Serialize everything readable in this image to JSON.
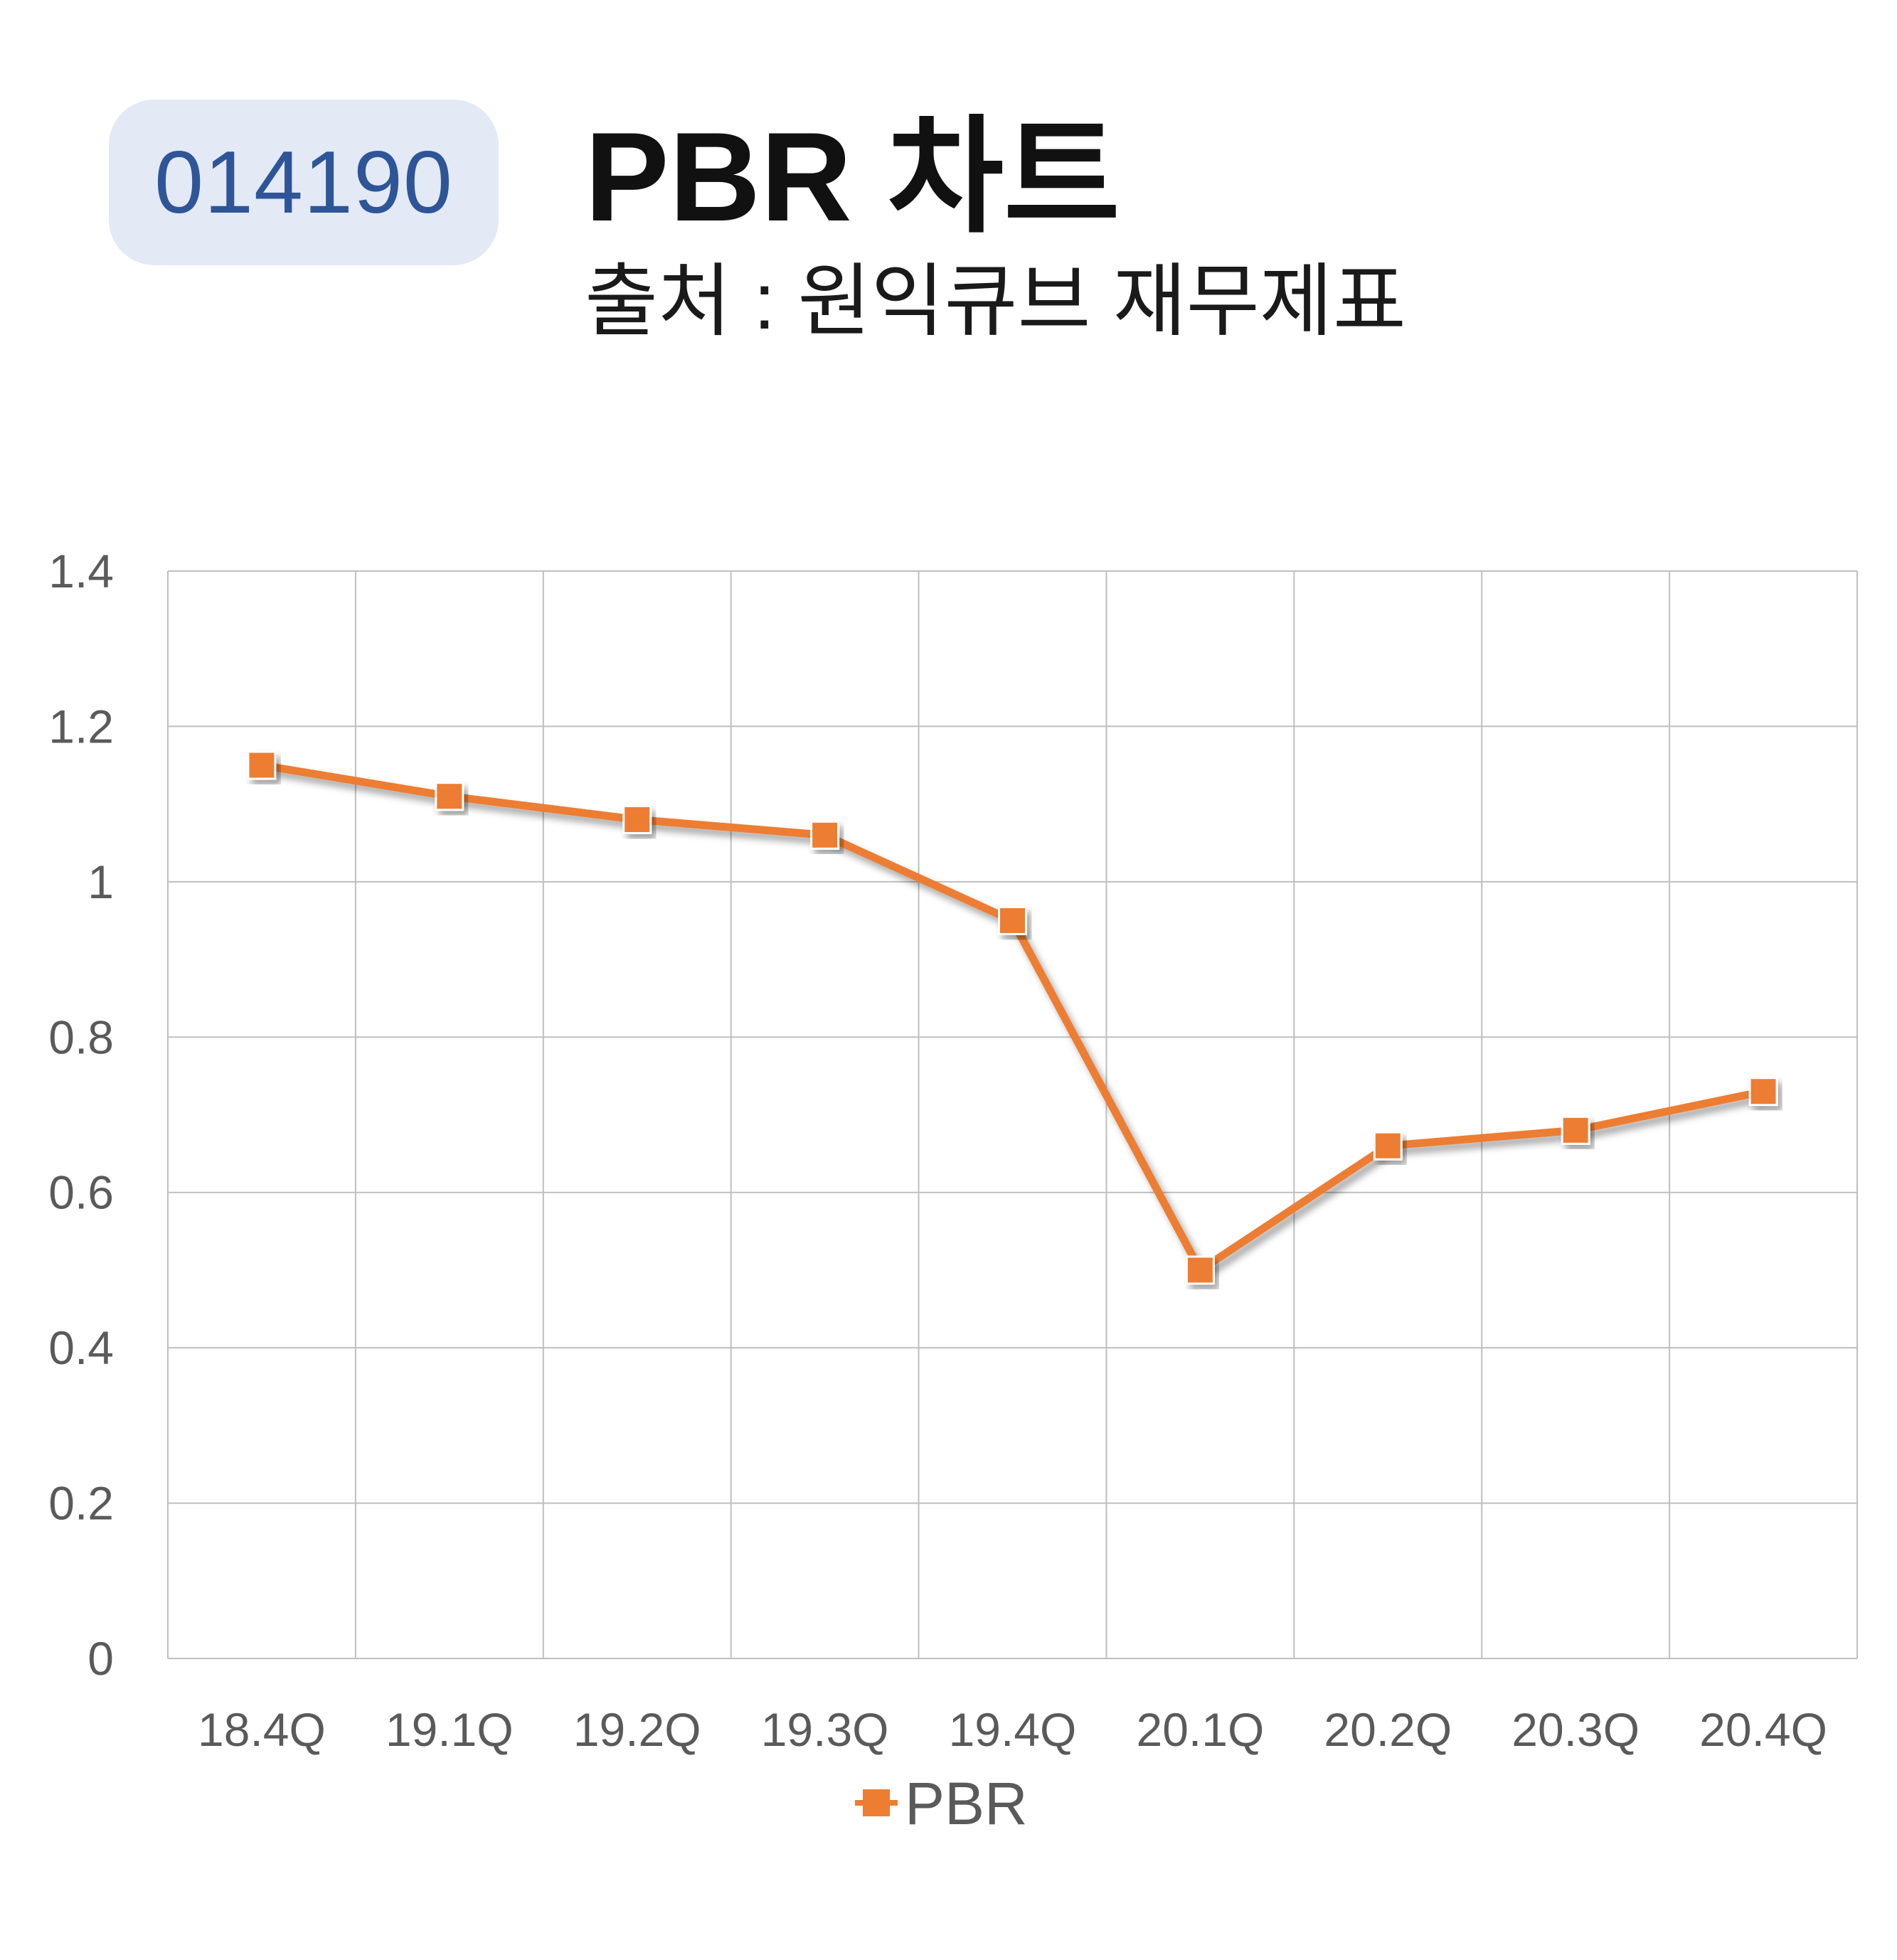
{
  "header": {
    "code": "014190",
    "title": "PBR 차트",
    "subtitle": "출처 : 원익큐브 재무제표"
  },
  "chart_data": {
    "type": "line",
    "categories": [
      "18.4Q",
      "19.1Q",
      "19.2Q",
      "19.3Q",
      "19.4Q",
      "20.1Q",
      "20.2Q",
      "20.3Q",
      "20.4Q"
    ],
    "series": [
      {
        "name": "PBR",
        "values": [
          1.15,
          1.11,
          1.08,
          1.06,
          0.95,
          0.5,
          0.66,
          0.68,
          0.73
        ],
        "color": "#ed7d31",
        "marker": "square"
      }
    ],
    "ylim": [
      0,
      1.4
    ],
    "yticks": [
      "0",
      "0.2",
      "0.4",
      "0.6",
      "0.8",
      "1",
      "1.2",
      "1.4"
    ],
    "ytick_values": [
      0,
      0.2,
      0.4,
      0.6,
      0.8,
      1,
      1.2,
      1.4
    ],
    "grid": true,
    "legend": "bottom-center",
    "colors": {
      "badge_bg": "#e3e9f5",
      "badge_text": "#2e5597",
      "grid": "#bfbfbf",
      "series": "#ed7d31"
    }
  }
}
